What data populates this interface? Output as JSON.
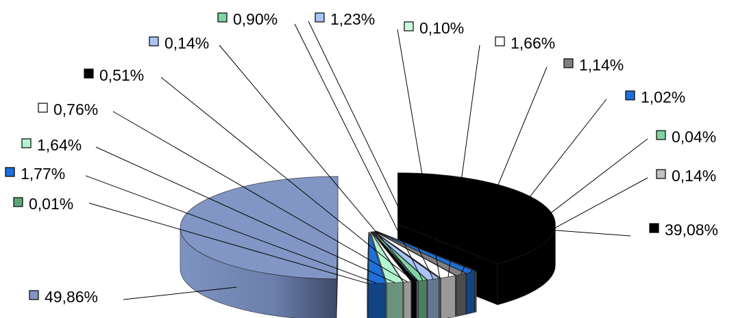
{
  "chart_data": {
    "type": "pie",
    "style": "3d-exploded",
    "slices": [
      {
        "value": 39.08,
        "label": "39,08%",
        "color": "#000000"
      },
      {
        "value": 0.14,
        "label": "0,14%",
        "color": "#c0c0c0"
      },
      {
        "value": 0.04,
        "label": "0,04%",
        "color": "#7fd4a4"
      },
      {
        "value": 1.02,
        "label": "1,02%",
        "color": "#1e6fd9"
      },
      {
        "value": 1.14,
        "label": "1,14%",
        "color": "#808080"
      },
      {
        "value": 1.66,
        "label": "1,66%",
        "color": "#ffffff"
      },
      {
        "value": 0.1,
        "label": "0,10%",
        "color": "#ccffe0"
      },
      {
        "value": 1.23,
        "label": "1,23%",
        "color": "#a9c4f5"
      },
      {
        "value": 0.9,
        "label": "0,90%",
        "color": "#7fd4a4"
      },
      {
        "value": 0.14,
        "label": "0,14%",
        "color": "#a9c4f5"
      },
      {
        "value": 0.51,
        "label": "0,51%",
        "color": "#000000"
      },
      {
        "value": 0.76,
        "label": "0,76%",
        "color": "#ffffff"
      },
      {
        "value": 1.64,
        "label": "1,64%",
        "color": "#b3f5d0"
      },
      {
        "value": 1.77,
        "label": "1,77%",
        "color": "#1e6fd9"
      },
      {
        "value": 0.01,
        "label": "0,01%",
        "color": "#5aa87a"
      },
      {
        "value": 49.86,
        "label": "49,86%",
        "color": "#8196c4"
      }
    ]
  }
}
